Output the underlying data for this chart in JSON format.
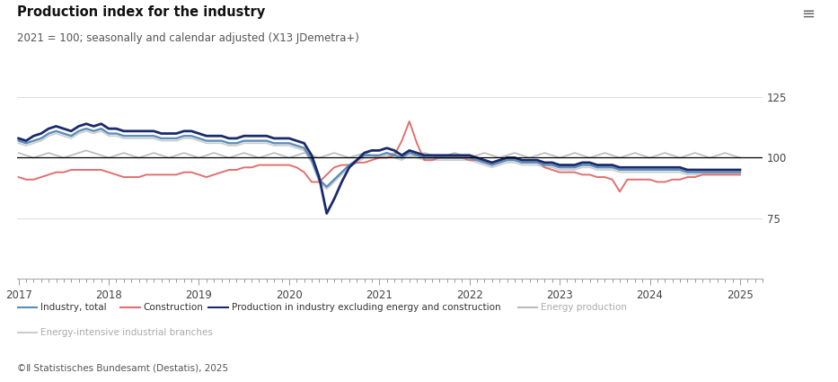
{
  "title": "Production index for the industry",
  "subtitle": "2021 = 100; seasonally and calendar adjusted (X13 JDemetra+)",
  "footer": "©Ⅱ Statistisches Bundesamt (Destatis), 2025",
  "ylim": [
    50,
    132
  ],
  "yticks": [
    75,
    100,
    125
  ],
  "hline_value": 100,
  "colors": {
    "industry_total": "#5B8DB8",
    "construction": "#E07070",
    "prod_excl": "#1B2A6B",
    "energy_prod": "#BBBBBB",
    "energy_intensive": "#CCCCCC"
  },
  "legend_items": [
    {
      "label": "Industry, total",
      "color": "#5B8DB8",
      "lw": 1.8,
      "gray": false
    },
    {
      "label": "Construction",
      "color": "#E07070",
      "lw": 1.5,
      "gray": false
    },
    {
      "label": "Production in industry excluding energy and construction",
      "color": "#1B2A6B",
      "lw": 2.2,
      "gray": false
    },
    {
      "label": "Energy production",
      "color": "#BBBBBB",
      "lw": 1.5,
      "gray": true
    },
    {
      "label": "Energy-intensive industrial branches",
      "color": "#CCCCCC",
      "lw": 1.5,
      "gray": true
    }
  ]
}
